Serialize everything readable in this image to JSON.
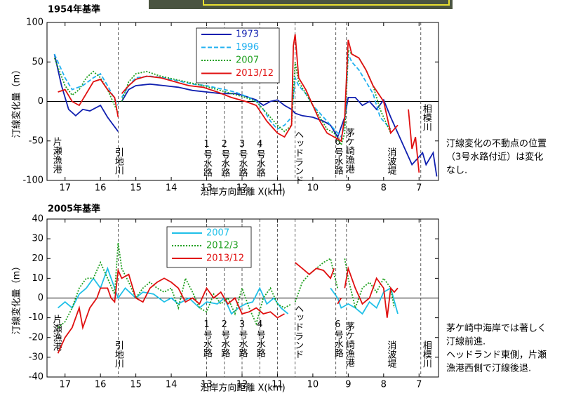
{
  "chart_data": [
    {
      "type": "line",
      "title": "1954年基準",
      "ylabel": "汀線変化量（m）",
      "xlabel": "沿岸方向距離 X(km)",
      "xlim": [
        17.51,
        6.45
      ],
      "xticks": [
        17,
        16,
        15,
        14,
        13,
        12,
        11,
        10,
        9,
        8,
        7
      ],
      "ylim": [
        -100,
        100
      ],
      "yticks": [
        -100,
        -50,
        0,
        50,
        100
      ],
      "vlines": [
        15.5,
        13,
        12.5,
        12,
        11.5,
        11,
        10.5,
        9.35,
        9.05,
        6.95
      ],
      "annotations": [
        {
          "text": "片瀬漁港",
          "x": 17.25
        },
        {
          "text": "引地川",
          "x": 15.5
        },
        {
          "text": "1号水路",
          "x": 13.0
        },
        {
          "text": "2号水路",
          "x": 12.5
        },
        {
          "text": "3号水路",
          "x": 12.0
        },
        {
          "text": "4号水路",
          "x": 11.5
        },
        {
          "text": "ヘッドランド",
          "x": 10.42
        },
        {
          "text": "6号水路",
          "x": 9.3
        },
        {
          "text": "茅ケ崎漁港",
          "x": 8.98
        },
        {
          "text": "消波堤",
          "x": 7.8
        },
        {
          "text": "相模川",
          "x": 6.8
        }
      ],
      "note": [
        "汀線変化の不動点の位置",
        "（3号水路付近）は変化",
        "なし."
      ],
      "series": [
        {
          "name": "1973",
          "color": "#1020b0",
          "style": "solid",
          "x": [
            17.3,
            17.1,
            16.9,
            16.7,
            16.5,
            16.3,
            16.0,
            15.8,
            15.5,
            15.45,
            15.4,
            15.2,
            15.0,
            14.6,
            14.2,
            13.8,
            13.4,
            13.0,
            12.6,
            12.2,
            12.0,
            11.6,
            11.4,
            11.2,
            11.0,
            10.8,
            10.6,
            10.5,
            10.3,
            10.0,
            9.7,
            9.5,
            9.3,
            9.1,
            9.0,
            8.8,
            8.6,
            8.4,
            8.2,
            8.0,
            7.8,
            7.6,
            7.4,
            7.2,
            7.0,
            6.9,
            6.8,
            6.6,
            6.5
          ],
          "values": [
            60,
            20,
            -10,
            -18,
            -10,
            -12,
            -5,
            -20,
            -38,
            null,
            0,
            15,
            20,
            22,
            20,
            18,
            14,
            12,
            10,
            10,
            8,
            2,
            -5,
            0,
            2,
            -5,
            -10,
            -15,
            -18,
            -20,
            -25,
            -30,
            -45,
            -20,
            5,
            5,
            -5,
            0,
            -10,
            2,
            -20,
            -40,
            -60,
            -80,
            -70,
            -65,
            -80,
            -65,
            -95
          ]
        },
        {
          "name": "1996",
          "color": "#20b0f0",
          "style": "dashed",
          "x": [
            17.3,
            17.0,
            16.8,
            16.5,
            16.2,
            16.0,
            15.8,
            15.5,
            15.45,
            15.4,
            15.2,
            15.0,
            14.6,
            14.2,
            13.8,
            13.4,
            13.0,
            12.6,
            12.2,
            11.8,
            11.6,
            11.4,
            11.2,
            11.0,
            10.8,
            10.6,
            10.5,
            10.4,
            10.2,
            10.0,
            9.8,
            9.6,
            9.4,
            9.2,
            9.1,
            9.0,
            8.9,
            8.7,
            8.5,
            8.3,
            8.1,
            7.9,
            7.8
          ],
          "values": [
            60,
            30,
            15,
            20,
            30,
            35,
            20,
            -5,
            null,
            5,
            20,
            30,
            32,
            30,
            26,
            22,
            20,
            16,
            12,
            5,
            0,
            -10,
            -25,
            -35,
            -30,
            -20,
            30,
            20,
            10,
            -5,
            -15,
            -25,
            -35,
            -45,
            -30,
            60,
            50,
            40,
            25,
            10,
            -20,
            -30,
            -35
          ]
        },
        {
          "name": "2007",
          "color": "#20a020",
          "style": "dotted",
          "x": [
            17.3,
            17.0,
            16.8,
            16.6,
            16.4,
            16.2,
            16.0,
            15.8,
            15.5,
            15.45,
            15.4,
            15.2,
            15.0,
            14.7,
            14.3,
            13.9,
            13.5,
            13.1,
            12.7,
            12.3,
            11.9,
            11.6,
            11.3,
            11.0,
            10.8,
            10.6,
            10.5,
            10.4,
            10.2,
            10.0,
            9.8,
            9.6,
            9.4,
            9.2,
            9.1,
            9.0,
            8.9,
            8.7,
            8.5,
            8.3,
            8.1,
            7.9,
            7.8
          ],
          "values": [
            55,
            20,
            8,
            15,
            30,
            38,
            30,
            15,
            -15,
            null,
            0,
            25,
            35,
            38,
            32,
            28,
            24,
            20,
            15,
            10,
            5,
            0,
            -15,
            -30,
            -38,
            -30,
            50,
            25,
            10,
            -5,
            -20,
            -35,
            -40,
            -55,
            -40,
            65,
            60,
            55,
            40,
            20,
            -10,
            -30,
            -40
          ]
        },
        {
          "name": "2013/12",
          "color": "#e01010",
          "style": "solid",
          "x": [
            17.2,
            17.0,
            16.8,
            16.6,
            16.4,
            16.2,
            16.0,
            15.8,
            15.6,
            15.5,
            15.45,
            15.4,
            15.2,
            15.0,
            14.7,
            14.3,
            13.9,
            13.5,
            13.1,
            12.7,
            12.3,
            11.9,
            11.6,
            11.3,
            11.0,
            10.8,
            10.6,
            10.55,
            10.5,
            10.4,
            10.2,
            10.0,
            9.8,
            9.6,
            9.4,
            9.2,
            9.1,
            9.0,
            8.9,
            8.7,
            8.5,
            8.3,
            8.0,
            7.8,
            7.6,
            7.5,
            7.3,
            7.2,
            7.1,
            7.0
          ],
          "values": [
            12,
            15,
            0,
            -5,
            10,
            25,
            28,
            15,
            5,
            -20,
            null,
            10,
            20,
            28,
            32,
            30,
            25,
            20,
            18,
            12,
            5,
            0,
            -5,
            -25,
            -40,
            -45,
            -30,
            70,
            85,
            30,
            15,
            -5,
            -25,
            -40,
            -45,
            -50,
            -20,
            78,
            60,
            55,
            40,
            20,
            0,
            -40,
            -30,
            null,
            -10,
            -60,
            -45,
            -90
          ]
        }
      ]
    },
    {
      "type": "line",
      "title": "2005年基準",
      "ylabel": "汀線変化量（m）",
      "xlabel": "沿岸方向距離 X(km)",
      "xlim": [
        17.51,
        6.45
      ],
      "xticks": [
        17,
        16,
        15,
        14,
        13,
        12,
        11,
        10,
        9,
        8,
        7
      ],
      "ylim": [
        -40,
        40
      ],
      "yticks": [
        -40,
        -30,
        -20,
        -10,
        0,
        10,
        20,
        30,
        40
      ],
      "vlines": [
        15.5,
        13,
        12.5,
        12,
        11.5,
        11,
        10.5,
        9.35,
        9.05,
        6.95
      ],
      "annotations": [
        {
          "text": "片瀬漁港",
          "x": 17.25
        },
        {
          "text": "引地川",
          "x": 15.5
        },
        {
          "text": "1号水路",
          "x": 13.0
        },
        {
          "text": "2号水路",
          "x": 12.5
        },
        {
          "text": "3号水路",
          "x": 12.0
        },
        {
          "text": "4号水路",
          "x": 11.5
        },
        {
          "text": "ヘッドランド",
          "x": 10.42
        },
        {
          "text": "6号水路",
          "x": 9.3
        },
        {
          "text": "茅ケ崎漁港",
          "x": 8.98
        },
        {
          "text": "消波堤",
          "x": 7.8
        },
        {
          "text": "相模川",
          "x": 6.8
        }
      ],
      "note": [
        "茅ケ崎中海岸では著しく",
        "汀線前進.",
        "ヘッドランド東側，片瀬",
        "漁港西側で汀線後退."
      ],
      "series": [
        {
          "name": "2007",
          "color": "#20c0e8",
          "style": "solid",
          "x": [
            17.2,
            17.0,
            16.8,
            16.6,
            16.4,
            16.2,
            16.0,
            15.8,
            15.6,
            15.5,
            15.3,
            15.0,
            14.8,
            14.5,
            14.2,
            14.0,
            13.8,
            13.5,
            13.2,
            13.0,
            12.7,
            12.5,
            12.3,
            12.1,
            11.9,
            11.7,
            11.5,
            11.3,
            11.1,
            10.9,
            10.7,
            10.5,
            9.5,
            9.3,
            9.2,
            9.0,
            8.8,
            8.6,
            8.4,
            8.2,
            8.0,
            7.8,
            7.6
          ],
          "values": [
            -5,
            -2,
            -5,
            2,
            5,
            10,
            5,
            15,
            5,
            0,
            5,
            0,
            3,
            2,
            -2,
            0,
            -3,
            0,
            -5,
            -2,
            -3,
            0,
            -8,
            -5,
            -3,
            -2,
            5,
            -3,
            0,
            -5,
            -8,
            null,
            5,
            0,
            -5,
            -3,
            -5,
            -8,
            -2,
            -5,
            3,
            5,
            -8
          ]
        },
        {
          "name": "2012/3",
          "color": "#20a020",
          "style": "dotted",
          "x": [
            17.2,
            17.0,
            16.8,
            16.6,
            16.4,
            16.2,
            16.0,
            15.8,
            15.6,
            15.5,
            15.4,
            15.2,
            15.0,
            14.8,
            14.6,
            14.4,
            14.2,
            14.0,
            13.8,
            13.6,
            13.4,
            13.2,
            13.0,
            12.8,
            12.6,
            12.4,
            12.2,
            12.0,
            11.8,
            11.6,
            11.4,
            11.2,
            11.0,
            10.8,
            10.6,
            10.55,
            10.5,
            10.3,
            10.1,
            9.9,
            9.7,
            9.5,
            9.4,
            9.3,
            9.2,
            9.1,
            9.0,
            8.8,
            8.6,
            8.4,
            8.2,
            8.0,
            7.8,
            7.7
          ],
          "values": [
            -15,
            -12,
            -5,
            5,
            10,
            10,
            18,
            10,
            2,
            28,
            15,
            8,
            0,
            5,
            8,
            5,
            3,
            5,
            -5,
            10,
            3,
            -5,
            -7,
            2,
            -3,
            0,
            -8,
            5,
            -5,
            -13,
            0,
            5,
            -3,
            -5,
            -3,
            null,
            -2,
            8,
            12,
            15,
            18,
            20,
            12,
            5,
            null,
            20,
            10,
            -5,
            5,
            8,
            3,
            10,
            5,
            -5
          ]
        },
        {
          "name": "2013/12",
          "color": "#e01010",
          "style": "solid",
          "x": [
            17.2,
            17.0,
            16.8,
            16.6,
            16.5,
            16.3,
            16.1,
            16.0,
            15.8,
            15.7,
            15.6,
            15.5,
            15.4,
            15.2,
            15.0,
            14.8,
            14.6,
            14.4,
            14.2,
            14.0,
            13.8,
            13.6,
            13.4,
            13.2,
            13.0,
            12.8,
            12.6,
            12.4,
            12.2,
            12.0,
            11.8,
            11.6,
            11.4,
            11.2,
            11.0,
            10.8,
            10.6,
            10.5,
            10.3,
            10.1,
            9.9,
            9.7,
            9.5,
            9.4,
            9.35,
            9.3,
            9.2,
            9.15,
            9.1,
            9.0,
            8.8,
            8.6,
            8.4,
            8.2,
            8.0,
            7.9,
            7.8,
            7.7,
            7.6
          ],
          "values": [
            -28,
            -20,
            -15,
            -5,
            -15,
            -5,
            0,
            5,
            5,
            0,
            -2,
            14,
            10,
            12,
            0,
            -2,
            5,
            8,
            10,
            8,
            5,
            -2,
            0,
            -3,
            5,
            0,
            3,
            -3,
            0,
            -8,
            -7,
            -5,
            -8,
            -7,
            -10,
            -8,
            null,
            18,
            15,
            12,
            15,
            14,
            10,
            15,
            null,
            -3,
            0,
            null,
            5,
            15,
            5,
            -3,
            0,
            10,
            5,
            -10,
            5,
            3,
            5
          ]
        }
      ]
    }
  ]
}
